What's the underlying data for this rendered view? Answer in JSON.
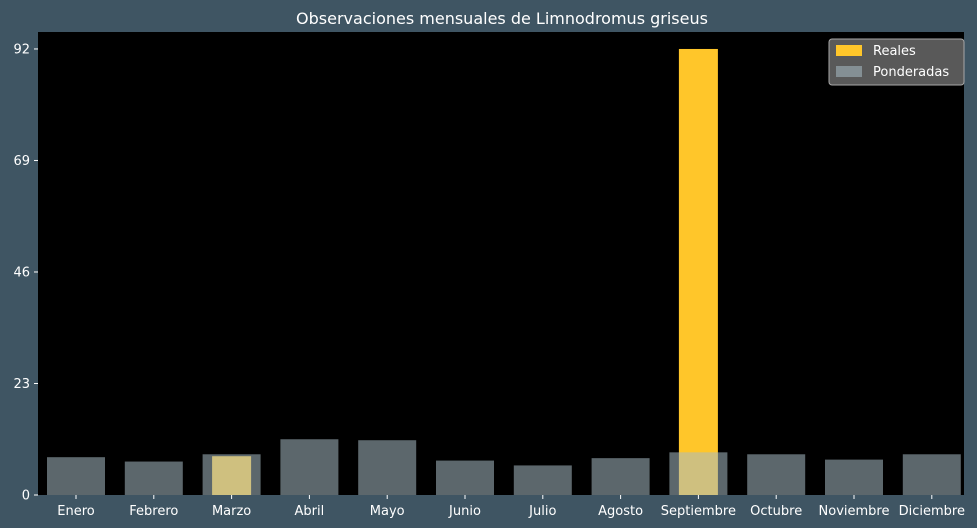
{
  "chart_data": {
    "type": "bar",
    "title": "Observaciones mensuales de Limnodromus griseus",
    "xlabel": "",
    "ylabel": "",
    "categories": [
      "Enero",
      "Febrero",
      "Marzo",
      "Abril",
      "Mayo",
      "Junio",
      "Julio",
      "Agosto",
      "Septiembre",
      "Octubre",
      "Noviembre",
      "Diciembre"
    ],
    "series": [
      {
        "name": "Reales",
        "values": [
          0,
          0,
          8,
          0,
          0,
          0,
          0,
          0,
          92,
          0,
          0,
          0
        ],
        "color": "#ffc62a"
      },
      {
        "name": "Ponderadas",
        "values": [
          7.8,
          6.9,
          8.4,
          11.5,
          11.3,
          7.1,
          6.1,
          7.6,
          8.8,
          8.4,
          7.3,
          8.4
        ],
        "color": "#a7bcc5"
      }
    ],
    "ylim": [
      0,
      95.5
    ],
    "yticks": [
      0,
      23,
      46,
      69,
      92
    ],
    "legend_position": "top-right",
    "grid": false,
    "background": "#000000",
    "figure_background": "#3f5563"
  }
}
